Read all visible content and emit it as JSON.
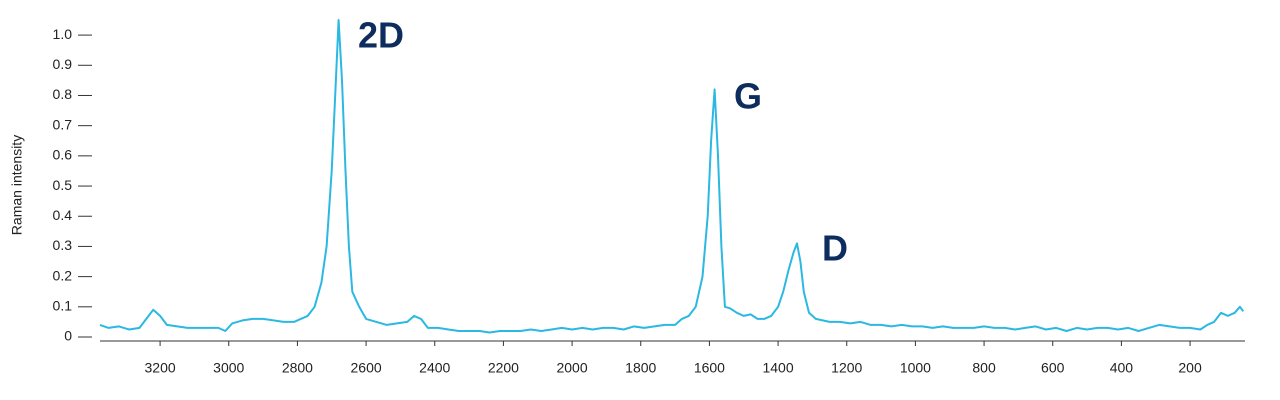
{
  "chart_data": {
    "type": "line",
    "ylabel": "Raman intensity",
    "annotations": [
      "2D",
      "G",
      "D"
    ],
    "color": "#2bb8e2",
    "xlim": [
      3375,
      40
    ],
    "ylim": [
      0,
      1.05
    ],
    "xticks": [
      3200,
      3000,
      2800,
      2600,
      2400,
      2200,
      2000,
      1800,
      1600,
      1400,
      1200,
      1000,
      800,
      600,
      400,
      200
    ],
    "yticks": [
      0,
      0.1,
      0.2,
      0.3,
      0.4,
      0.5,
      0.6,
      0.7,
      0.8,
      0.9,
      {
        "value": 1,
        "label": "1.0"
      }
    ],
    "x": [
      3375,
      3350,
      3320,
      3290,
      3260,
      3240,
      3220,
      3200,
      3180,
      3150,
      3120,
      3090,
      3060,
      3030,
      3010,
      2990,
      2960,
      2930,
      2900,
      2870,
      2840,
      2810,
      2790,
      2770,
      2750,
      2730,
      2715,
      2700,
      2690,
      2680,
      2670,
      2660,
      2650,
      2640,
      2620,
      2600,
      2570,
      2540,
      2510,
      2480,
      2460,
      2440,
      2420,
      2390,
      2360,
      2330,
      2300,
      2270,
      2240,
      2210,
      2180,
      2150,
      2120,
      2090,
      2060,
      2030,
      2000,
      1970,
      1940,
      1910,
      1880,
      1850,
      1820,
      1790,
      1760,
      1730,
      1700,
      1680,
      1660,
      1640,
      1620,
      1605,
      1595,
      1585,
      1575,
      1565,
      1555,
      1540,
      1520,
      1500,
      1480,
      1460,
      1440,
      1420,
      1400,
      1385,
      1370,
      1355,
      1345,
      1335,
      1325,
      1310,
      1290,
      1270,
      1250,
      1220,
      1190,
      1160,
      1130,
      1100,
      1070,
      1040,
      1010,
      980,
      950,
      920,
      890,
      860,
      830,
      800,
      770,
      740,
      710,
      680,
      650,
      620,
      590,
      560,
      530,
      500,
      470,
      440,
      410,
      380,
      350,
      320,
      290,
      260,
      230,
      200,
      170,
      150,
      130,
      110,
      90,
      70,
      55,
      45
    ],
    "values": [
      0.04,
      0.03,
      0.035,
      0.025,
      0.03,
      0.06,
      0.09,
      0.07,
      0.04,
      0.035,
      0.03,
      0.03,
      0.03,
      0.03,
      0.02,
      0.045,
      0.055,
      0.06,
      0.06,
      0.055,
      0.05,
      0.05,
      0.06,
      0.07,
      0.1,
      0.18,
      0.3,
      0.55,
      0.8,
      1.05,
      0.85,
      0.55,
      0.3,
      0.15,
      0.1,
      0.06,
      0.05,
      0.04,
      0.045,
      0.05,
      0.07,
      0.06,
      0.03,
      0.03,
      0.025,
      0.02,
      0.02,
      0.02,
      0.015,
      0.02,
      0.02,
      0.02,
      0.025,
      0.02,
      0.025,
      0.03,
      0.025,
      0.03,
      0.025,
      0.03,
      0.03,
      0.025,
      0.035,
      0.03,
      0.035,
      0.04,
      0.04,
      0.06,
      0.07,
      0.1,
      0.2,
      0.4,
      0.65,
      0.82,
      0.6,
      0.3,
      0.1,
      0.095,
      0.08,
      0.07,
      0.075,
      0.06,
      0.06,
      0.07,
      0.1,
      0.15,
      0.22,
      0.28,
      0.31,
      0.25,
      0.15,
      0.08,
      0.06,
      0.055,
      0.05,
      0.05,
      0.045,
      0.05,
      0.04,
      0.04,
      0.035,
      0.04,
      0.035,
      0.035,
      0.03,
      0.035,
      0.03,
      0.03,
      0.03,
      0.035,
      0.03,
      0.03,
      0.025,
      0.03,
      0.035,
      0.025,
      0.03,
      0.02,
      0.03,
      0.025,
      0.03,
      0.03,
      0.025,
      0.03,
      0.02,
      0.03,
      0.04,
      0.035,
      0.03,
      0.03,
      0.025,
      0.04,
      0.05,
      0.08,
      0.07,
      0.08,
      0.1,
      0.085
    ]
  }
}
